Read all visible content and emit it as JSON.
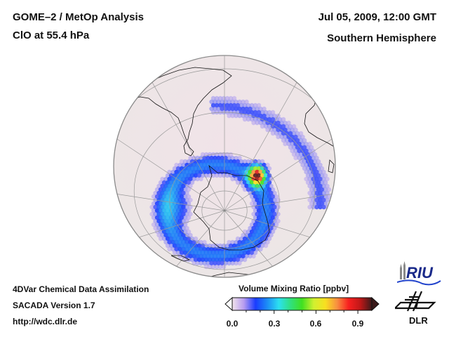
{
  "header": {
    "title": "GOME–2 / MetOp Analysis",
    "subtitle": "ClO at 55.4 hPa",
    "datetime": "Jul 05, 2009, 12:00 GMT",
    "region": "Southern Hemisphere"
  },
  "footer": {
    "line1": "4DVar Chemical Data Assimilation",
    "line2": "SACADA Version 1.7",
    "line3": "http://wdc.dlr.de"
  },
  "colorbar": {
    "title": "Volume Mixing Ratio [ppbv]",
    "ticks": [
      "0.0",
      "0.3",
      "0.6",
      "0.9"
    ],
    "range": [
      0.0,
      1.0
    ],
    "colors": [
      "#f2e4ea",
      "#b79cf0",
      "#1a3cff",
      "#1c8cf5",
      "#2ce0f0",
      "#30e080",
      "#40e020",
      "#d0f030",
      "#f8e020",
      "#f89040",
      "#f82020",
      "#c01818",
      "#3c1a1a"
    ]
  },
  "logos": {
    "riu": "RIU",
    "dlr": "DLR"
  },
  "map": {
    "projection": "orthographic",
    "hemisphere": "south",
    "ocean_color": "#efe6e6",
    "coast_color": "#111111",
    "grid_color": "#9a9a9a"
  }
}
